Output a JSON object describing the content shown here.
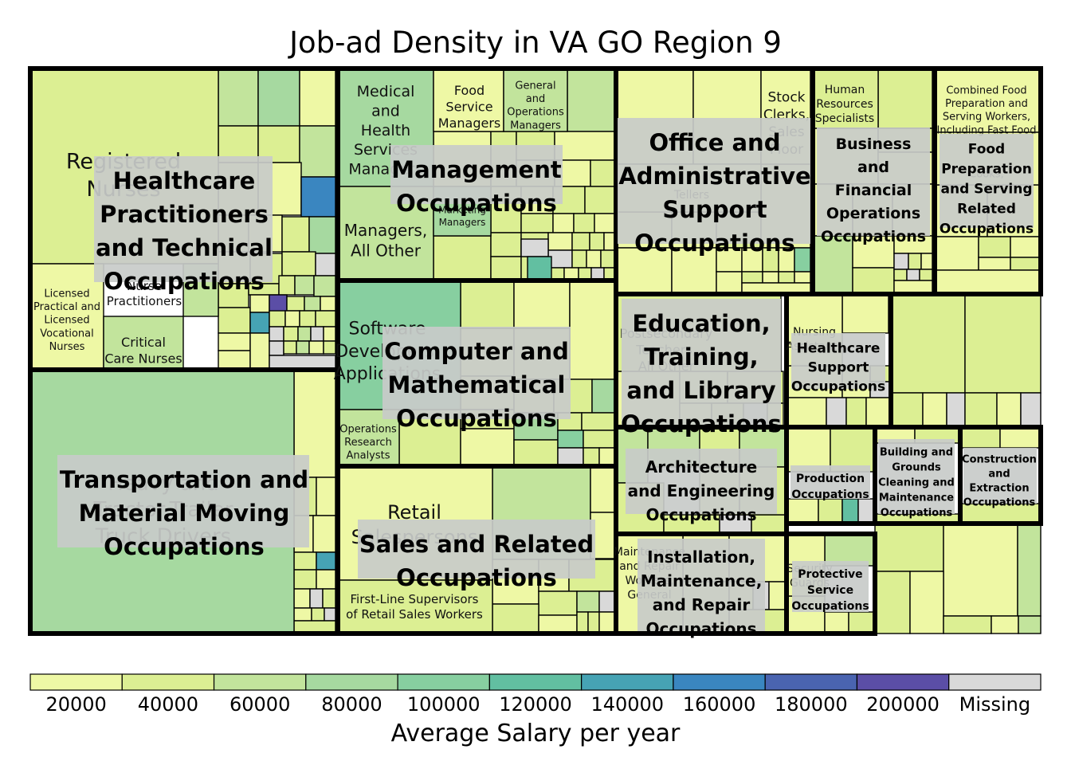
{
  "chart_data": {
    "type": "treemap",
    "title": "Job-ad Density in VA GO Region 9",
    "colorbar": {
      "label": "Average Salary per year",
      "ticks": [
        "20000",
        "40000",
        "60000",
        "80000",
        "100000",
        "120000",
        "140000",
        "160000",
        "180000",
        "200000",
        "Missing"
      ],
      "colors": [
        "#eef8a5",
        "#dcef93",
        "#c2e49c",
        "#a6d9a0",
        "#87cfa0",
        "#62bfa1",
        "#46a3b4",
        "#3a86c0",
        "#4a64b0",
        "#5b4ea6",
        "#d9d9d9"
      ]
    },
    "groups": [
      {
        "name": "Healthcare Practitioners and Technical Occupations",
        "leaves": [
          {
            "label": "Registered Nurses",
            "salary_bin": 1
          },
          {
            "label": "Nurse Practitioners",
            "salary_bin": 2
          },
          {
            "label": "Licensed Practical and Licensed Vocational Nurses",
            "salary_bin": 0
          },
          {
            "label": "Critical Care Nurses",
            "salary_bin": 2
          }
        ]
      },
      {
        "name": "Transportation and Material Moving Occupations",
        "leaves": [
          {
            "label": "Heavy and Tractor-Trailer Truck Drivers",
            "salary_bin": 3
          }
        ]
      },
      {
        "name": "Management Occupations",
        "leaves": [
          {
            "label": "Medical and Health Services Managers",
            "salary_bin": 3
          },
          {
            "label": "Food Service Managers",
            "salary_bin": 0
          },
          {
            "label": "General and Operations Managers",
            "salary_bin": 2
          },
          {
            "label": "Managers, All Other",
            "salary_bin": 2
          },
          {
            "label": "Marketing Managers",
            "salary_bin": 3
          }
        ]
      },
      {
        "name": "Computer and Mathematical Occupations",
        "leaves": [
          {
            "label": "Software Developers, Applications",
            "salary_bin": 4
          },
          {
            "label": "Operations Research Analysts",
            "salary_bin": 2
          }
        ]
      },
      {
        "name": "Sales and Related Occupations",
        "leaves": [
          {
            "label": "Retail Salespersons",
            "salary_bin": 0
          },
          {
            "label": "First-Line Supervisors of Retail Sales Workers",
            "salary_bin": 1
          }
        ]
      },
      {
        "name": "Office and Administrative Support Occupations",
        "leaves": [
          {
            "label": "Stock Clerks, Sales Floor",
            "salary_bin": 0
          },
          {
            "label": "Tellers",
            "salary_bin": 0
          }
        ]
      },
      {
        "name": "Business and Financial Operations Occupations",
        "leaves": [
          {
            "label": "Human Resources Specialists",
            "salary_bin": 1
          }
        ]
      },
      {
        "name": "Food Preparation and Serving Related Occupations",
        "leaves": [
          {
            "label": "Combined Food Preparation and Serving Workers, Including Fast Food",
            "salary_bin": 0
          },
          {
            "label": "Cooks",
            "salary_bin": 0
          }
        ]
      },
      {
        "name": "Education, Training, and Library Occupations",
        "leaves": [
          {
            "label": "Postsecondary Teachers, All Other",
            "salary_bin": 1
          }
        ]
      },
      {
        "name": "Healthcare Support Occupations",
        "leaves": [
          {
            "label": "Nursing Assistants",
            "salary_bin": 0
          }
        ]
      },
      {
        "name": "Architecture and Engineering Occupations",
        "leaves": []
      },
      {
        "name": "Installation, Maintenance, and Repair Occupations",
        "leaves": [
          {
            "label": "Maintenance and Repair Workers, General",
            "salary_bin": 0
          }
        ]
      },
      {
        "name": "Production Occupations",
        "leaves": []
      },
      {
        "name": "Building and Grounds Cleaning and Maintenance Occupations",
        "leaves": []
      },
      {
        "name": "Construction and Extraction Occupations",
        "leaves": []
      },
      {
        "name": "Protective Service Occupations",
        "leaves": [
          {
            "label": "Security Guards",
            "salary_bin": 0
          }
        ]
      }
    ]
  }
}
